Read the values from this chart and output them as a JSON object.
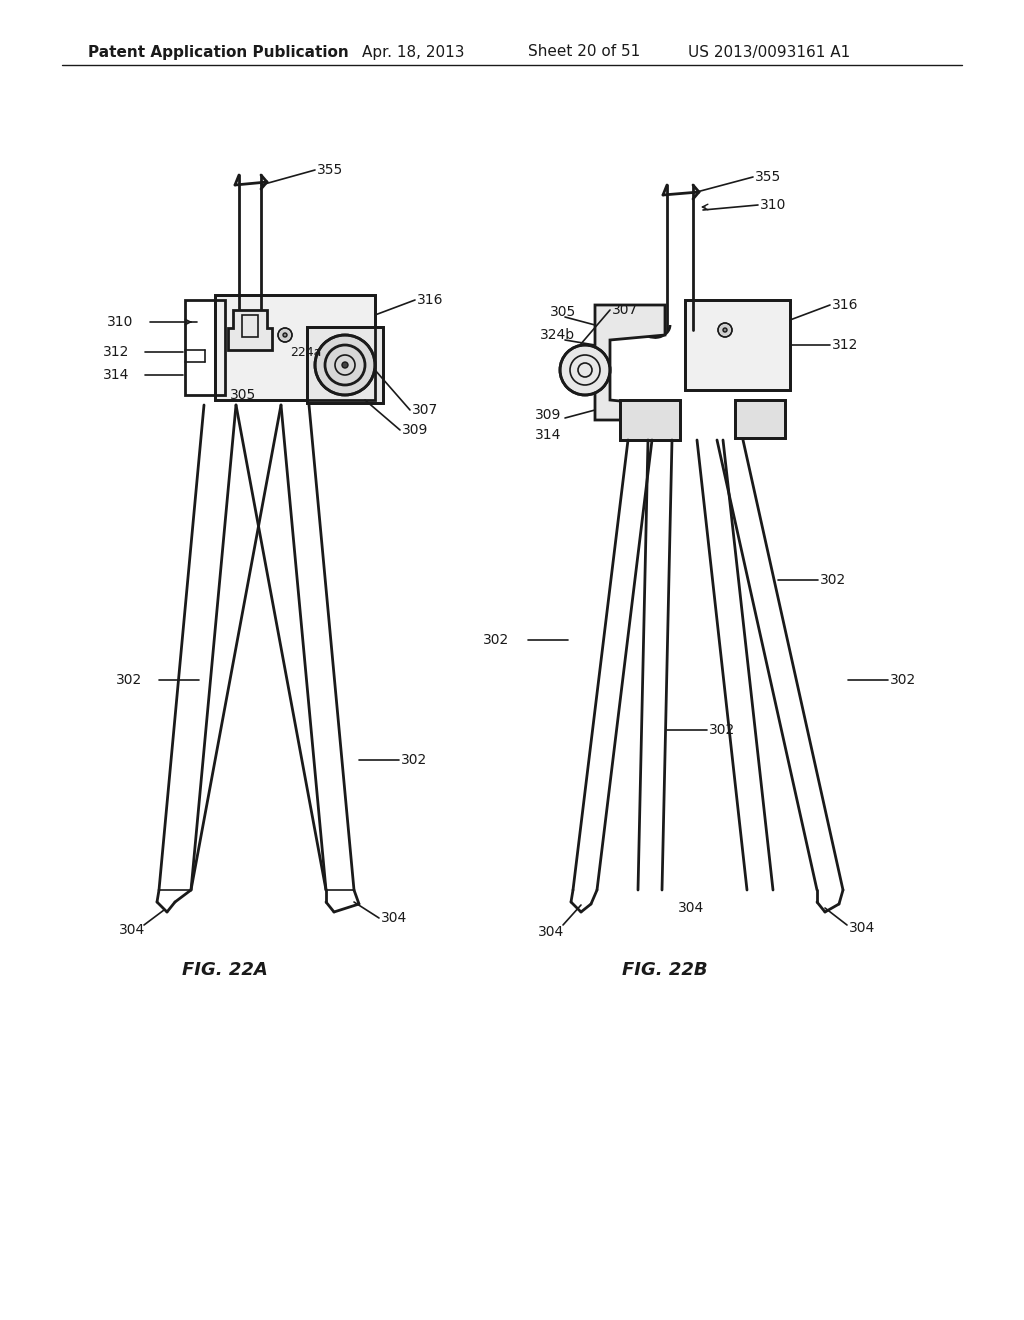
{
  "title": "Patent Application Publication",
  "date": "Apr. 18, 2013",
  "sheet": "Sheet 20 of 51",
  "patent_num": "US 2013/0093161 A1",
  "fig_a_label": "FIG. 22A",
  "fig_b_label": "FIG. 22B",
  "bg_color": "#ffffff",
  "line_color": "#1a1a1a",
  "text_color": "#1a1a1a",
  "header_fontsize": 11,
  "label_fontsize": 10,
  "fig_label_fontsize": 13
}
